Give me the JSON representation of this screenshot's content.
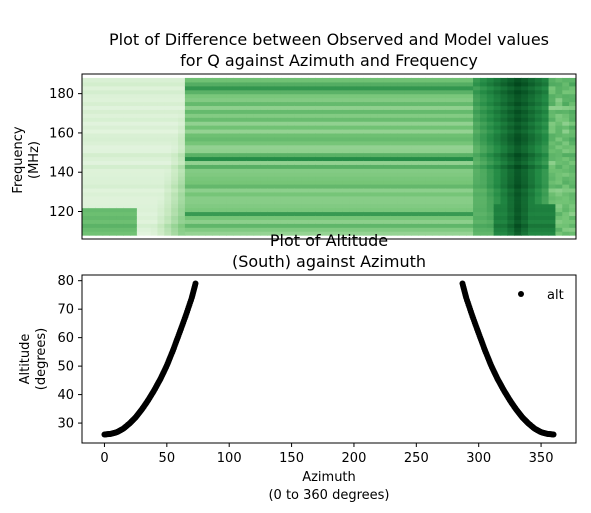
{
  "chart_data": [
    {
      "type": "heatmap",
      "title_line1": "Plot of Difference between Observed and Model values",
      "title_line2": "for Q against Azimuth and Frequency",
      "xlabel": "",
      "ylabel_line1": "Frequency",
      "ylabel_line2": "(MHz)",
      "xlim": [
        0,
        360
      ],
      "ylim": [
        106,
        190
      ],
      "yticks": [
        120,
        140,
        160,
        180
      ],
      "colormap": "Greens",
      "colors": {
        "lightest": "#f7fcf5",
        "light": "#c7e9c0",
        "mid": "#74c476",
        "dark": "#238b45",
        "darkest": "#00441b"
      },
      "data_extent": {
        "x": [
          0,
          360
        ],
        "y": [
          108,
          188
        ]
      },
      "regions": [
        {
          "x": [
            0,
            75
          ],
          "y": [
            108,
            188
          ],
          "pattern": "pale crescent, darker toward lower-left",
          "level": 0.2
        },
        {
          "x": [
            75,
            285
          ],
          "y": [
            108,
            188
          ],
          "pattern": "uniform horizontal banding",
          "level": 0.5
        },
        {
          "x": [
            285,
            360
          ],
          "y": [
            108,
            188
          ],
          "pattern": "dark crescent, darker toward upper-middle",
          "level": 0.85
        }
      ]
    },
    {
      "type": "scatter",
      "title_line1": "Plot of Altitude",
      "title_line2": "(South) against Azimuth",
      "xlabel_line1": "Azimuth",
      "xlabel_line2": "(0 to 360 degrees)",
      "ylabel_line1": "Altitude",
      "ylabel_line2": "(degrees)",
      "xlim": [
        -18,
        378
      ],
      "ylim": [
        23,
        82
      ],
      "xticks": [
        0,
        50,
        100,
        150,
        200,
        250,
        300,
        350
      ],
      "yticks": [
        30,
        40,
        50,
        60,
        70,
        80
      ],
      "legend": {
        "label": "alt",
        "placement": "top-right"
      },
      "series": [
        {
          "name": "alt",
          "color": "#000000",
          "x": [
            0,
            5,
            10,
            15,
            20,
            25,
            30,
            35,
            40,
            45,
            50,
            55,
            60,
            65,
            70,
            73,
            287,
            290,
            295,
            300,
            305,
            310,
            315,
            320,
            325,
            330,
            335,
            340,
            345,
            350,
            355,
            360
          ],
          "y": [
            26.0,
            26.2,
            26.8,
            28.0,
            29.8,
            32.0,
            34.8,
            38.0,
            41.6,
            45.6,
            50.2,
            55.6,
            61.5,
            67.5,
            74.0,
            79.0,
            79.0,
            74.0,
            67.5,
            61.5,
            55.6,
            50.2,
            45.6,
            41.6,
            38.0,
            34.8,
            32.0,
            29.8,
            28.0,
            26.8,
            26.2,
            26.0
          ]
        }
      ]
    }
  ]
}
